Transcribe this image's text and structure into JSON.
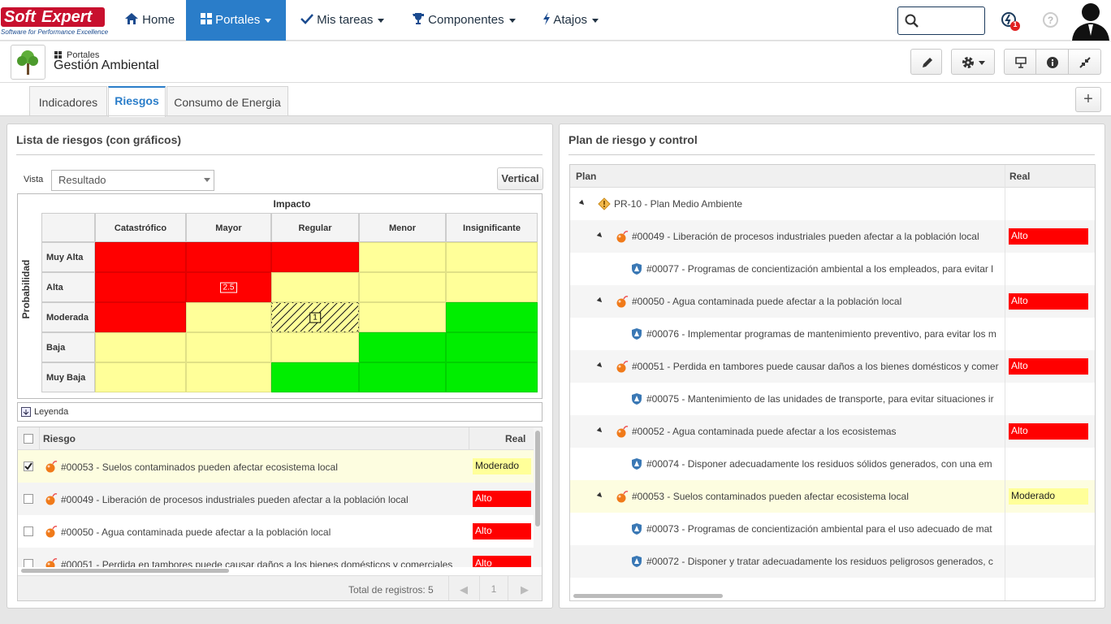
{
  "header": {
    "logo": {
      "soft": "Soft",
      "expert": "Expert",
      "tagline": "Software for Performance Excellence"
    },
    "nav": [
      "Home",
      "Portales",
      "Mis tareas",
      "Componentes",
      "Atajos"
    ],
    "notification_count": "1",
    "help": "?"
  },
  "portal": {
    "breadcrumb": "Portales",
    "title": "Gestión Ambiental"
  },
  "tabs": [
    "Indicadores",
    "Riesgos",
    "Consumo de Energia"
  ],
  "left_panel": {
    "title": "Lista de riesgos (con gráficos)",
    "view_label": "Vista",
    "view_value": "Resultado",
    "button": "Vertical",
    "matrix": {
      "x_title": "Impacto",
      "y_title": "Probabilidad",
      "columns": [
        "Catastrófico",
        "Mayor",
        "Regular",
        "Menor",
        "Insignificante"
      ],
      "rows": [
        {
          "label": "Muy Alta",
          "cells": [
            {
              "color": "#ff0000"
            },
            {
              "color": "#ff0000"
            },
            {
              "color": "#ff0000"
            },
            {
              "color": "#ffff99"
            },
            {
              "color": "#ffff99"
            }
          ]
        },
        {
          "label": "Alta",
          "cells": [
            {
              "color": "#ff0000"
            },
            {
              "color": "#ff0000",
              "marker": "2.5"
            },
            {
              "color": "#ffff99"
            },
            {
              "color": "#ffff99"
            },
            {
              "color": "#ffff99"
            }
          ]
        },
        {
          "label": "Moderada",
          "cells": [
            {
              "color": "#ff0000"
            },
            {
              "color": "#ffff99"
            },
            {
              "color": "#ffff99",
              "marker": "1",
              "hatched": true
            },
            {
              "color": "#ffff99"
            },
            {
              "color": "#00ee00"
            }
          ]
        },
        {
          "label": "Baja",
          "cells": [
            {
              "color": "#ffff99"
            },
            {
              "color": "#ffff99"
            },
            {
              "color": "#ffff99"
            },
            {
              "color": "#00ee00"
            },
            {
              "color": "#00ee00"
            }
          ]
        },
        {
          "label": "Muy Baja",
          "cells": [
            {
              "color": "#ffff99"
            },
            {
              "color": "#ffff99"
            },
            {
              "color": "#00ee00"
            },
            {
              "color": "#00ee00"
            },
            {
              "color": "#00ee00"
            }
          ]
        }
      ]
    },
    "legend": "Leyenda",
    "table": {
      "headers": [
        "Riesgo",
        "Real"
      ],
      "rows": [
        {
          "checked": true,
          "text": "#00053 - Suelos contaminados pueden afectar ecosistema local",
          "real": "Moderado",
          "real_color": "#ffff99"
        },
        {
          "checked": false,
          "text": "#00049 - Liberación de procesos industriales pueden afectar a la población local",
          "real": "Alto",
          "real_color": "#ff0000"
        },
        {
          "checked": false,
          "text": "#00050 - Agua contaminada puede afectar a la población local",
          "real": "Alto",
          "real_color": "#ff0000"
        },
        {
          "checked": false,
          "text": "#00051 - Perdida en tambores puede causar daños a los bienes domésticos y comerciales",
          "real": "Alto",
          "real_color": "#ff0000"
        }
      ],
      "footer": "Total de registros: 5",
      "page": "1"
    }
  },
  "right_panel": {
    "title": "Plan de riesgo y control",
    "headers": [
      "Plan",
      "Real"
    ],
    "rows": [
      {
        "level": 0,
        "kind": "plan",
        "text": "PR-10 - Plan Medio Ambiente"
      },
      {
        "level": 1,
        "kind": "risk",
        "text": "#00049 - Liberación de procesos industriales pueden afectar a la población local",
        "real": "Alto",
        "real_color": "#ff0000"
      },
      {
        "level": 2,
        "kind": "control",
        "text": "#00077 - Programas de concientización ambiental a los empleados, para evitar l"
      },
      {
        "level": 1,
        "kind": "risk",
        "text": "#00050 - Agua contaminada puede afectar a la población local",
        "real": "Alto",
        "real_color": "#ff0000"
      },
      {
        "level": 2,
        "kind": "control",
        "text": "#00076 - Implementar programas de mantenimiento preventivo, para evitar los m"
      },
      {
        "level": 1,
        "kind": "risk",
        "text": "#00051 - Perdida en tambores puede causar daños a los bienes domésticos y comer",
        "real": "Alto",
        "real_color": "#ff0000"
      },
      {
        "level": 2,
        "kind": "control",
        "text": "#00075 - Mantenimiento de las unidades de transporte, para evitar situaciones ir"
      },
      {
        "level": 1,
        "kind": "risk",
        "text": "#00052 - Agua contaminada puede afectar a los ecosistemas",
        "real": "Alto",
        "real_color": "#ff0000"
      },
      {
        "level": 2,
        "kind": "control",
        "text": "#00074 - Disponer adecuadamente los residuos sólidos generados, con una em"
      },
      {
        "level": 1,
        "kind": "risk",
        "text": "#00053 - Suelos contaminados pueden afectar ecosistema local",
        "real": "Moderado",
        "real_color": "#ffff99",
        "selected": true
      },
      {
        "level": 2,
        "kind": "control",
        "text": "#00073 - Programas de concientización ambiental para el uso adecuado de mat"
      },
      {
        "level": 2,
        "kind": "control",
        "text": "#00072 - Disponer y tratar adecuadamente los residuos peligrosos generados, c"
      }
    ]
  }
}
